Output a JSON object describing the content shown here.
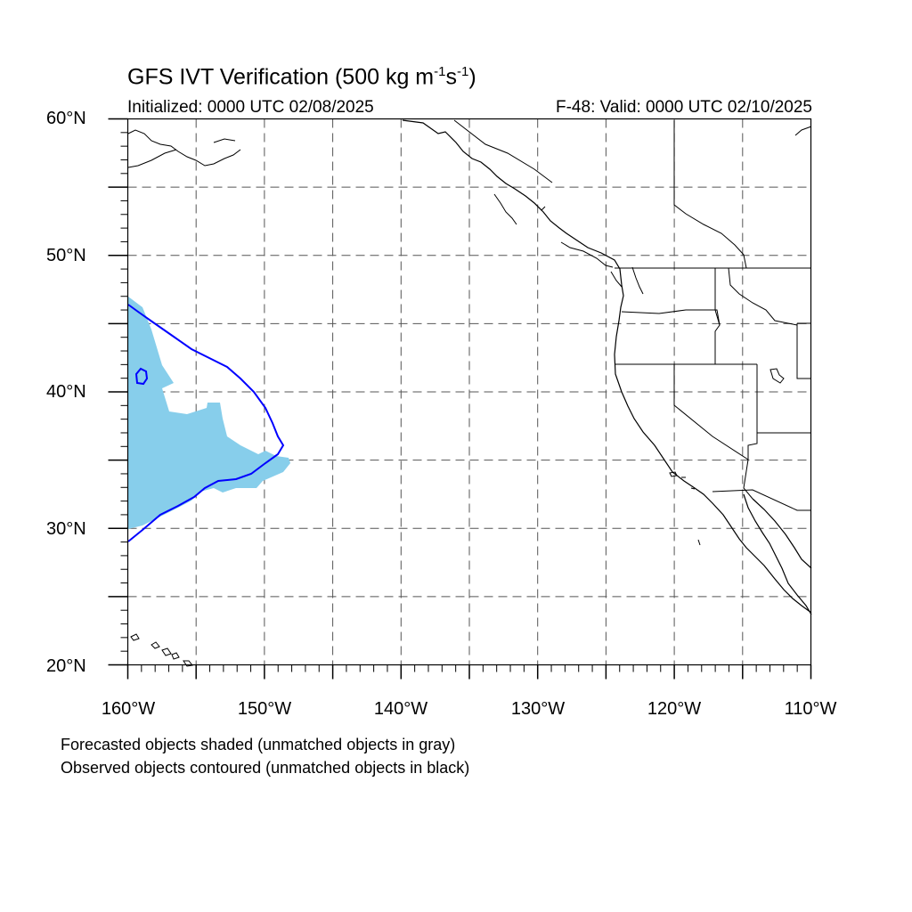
{
  "title": {
    "main": "GFS IVT Verification (500 kg m",
    "exp1": "-1",
    "mid": "s",
    "exp2": "-1",
    "end": ")"
  },
  "subtitle": {
    "initialized": "Initialized: 0000 UTC 02/08/2025",
    "valid": "F-48: Valid: 0000 UTC 02/10/2025"
  },
  "axes": {
    "lat_labels": [
      "60°N",
      "50°N",
      "40°N",
      "30°N",
      "20°N"
    ],
    "lon_labels": [
      "160°W",
      "150°W",
      "140°W",
      "130°W",
      "120°W",
      "110°W"
    ],
    "lat_range": [
      20,
      60
    ],
    "lon_range": [
      -160,
      -110
    ],
    "grid": "dashed, every 5 degrees"
  },
  "legend_notes": {
    "forecast": "Forecasted objects shaded (unmatched objects in gray)",
    "observed": "Observed objects contoured (unmatched objects in black)"
  },
  "colors": {
    "forecast_fill": "#87ceeb",
    "observed_contour": "#0000ff",
    "coastline": "#000000",
    "grid": "#555555"
  }
}
